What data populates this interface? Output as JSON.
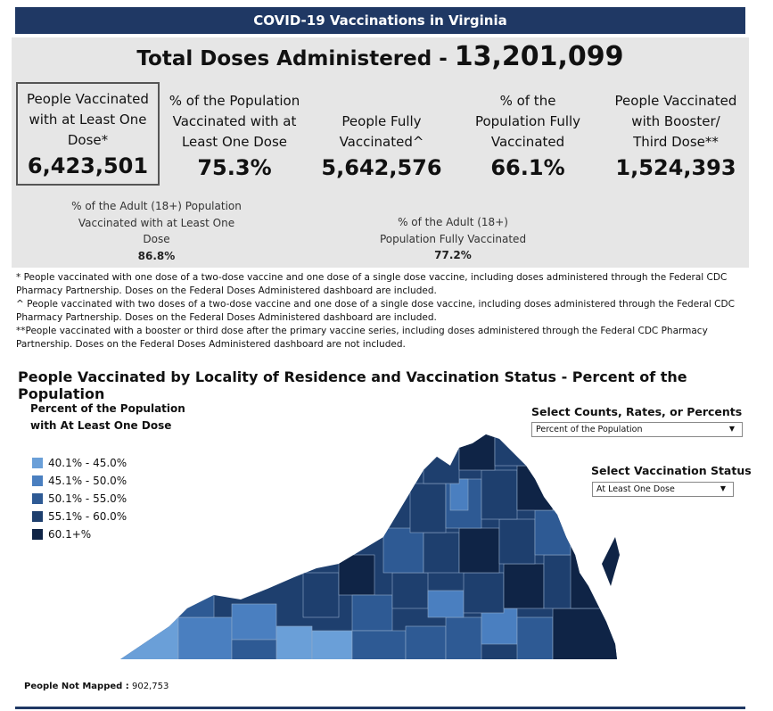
{
  "header": {
    "title": "COVID-19 Vaccinations in Virginia"
  },
  "total": {
    "label": "Total Doses Administered - ",
    "value": "13,201,099"
  },
  "stats": [
    {
      "label_lines": [
        "People Vaccinated",
        "with at Least One",
        "Dose*"
      ],
      "value": "6,423,501"
    },
    {
      "label_lines": [
        "% of the Population",
        "Vaccinated with at",
        "Least One Dose"
      ],
      "value": "75.3%"
    },
    {
      "label_lines": [
        "People Fully",
        "Vaccinated^"
      ],
      "value": "5,642,576"
    },
    {
      "label_lines": [
        "% of the",
        "Population Fully",
        "Vaccinated"
      ],
      "value": "66.1%"
    },
    {
      "label_lines": [
        "People Vaccinated",
        "with Booster/",
        "Third Dose**"
      ],
      "value": "1,524,393"
    }
  ],
  "adult": [
    {
      "label_lines": [
        "% of the Adult (18+) Population",
        "Vaccinated with at Least One",
        "Dose"
      ],
      "value": "86.8%"
    },
    {
      "label_lines": [
        "% of the Adult (18+)",
        "Population Fully Vaccinated"
      ],
      "value": "77.2%"
    }
  ],
  "footnotes": [
    "* People vaccinated with one dose of a two-dose vaccine and one dose of a single dose vaccine, including doses administered through the Federal CDC Pharmacy Partnership.  Doses on the Federal Doses Administered dashboard are included.",
    "^ People vaccinated with two doses of a two-dose vaccine and one dose of a single dose vaccine, including doses administered through the Federal CDC Pharmacy Partnership.  Doses on the Federal Doses Administered dashboard are included.",
    "**People vaccinated with a booster or third dose after the primary vaccine series, including doses administered through the Federal CDC Pharmacy Partnership. Doses on the Federal Doses Administered dashboard are not included."
  ],
  "map_section": {
    "title": "People Vaccinated by Locality of Residence and Vaccination Status - Percent of the Population",
    "legend_title_lines": [
      "Percent of the Population",
      "with At Least One Dose"
    ],
    "legend": [
      {
        "label": "40.1% - 45.0%",
        "color": "#6a9fd8"
      },
      {
        "label": "45.1% - 50.0%",
        "color": "#4a7fc0"
      },
      {
        "label": "50.1% - 55.0%",
        "color": "#2e5a94"
      },
      {
        "label": "55.1% - 60.0%",
        "color": "#1e3f6e"
      },
      {
        "label": "60.1+%",
        "color": "#0f2446"
      }
    ],
    "counts_control": {
      "label": "Select Counts, Rates, or Percents",
      "selected": "Percent of the Population"
    },
    "status_control": {
      "label": "Select Vaccination Status",
      "selected": "At Least One Dose"
    },
    "not_mapped": {
      "label": "People Not Mapped :",
      "value": "902,753"
    }
  },
  "colors": {
    "header_bg": "#1f3864",
    "summary_bg": "#e6e6e6"
  }
}
